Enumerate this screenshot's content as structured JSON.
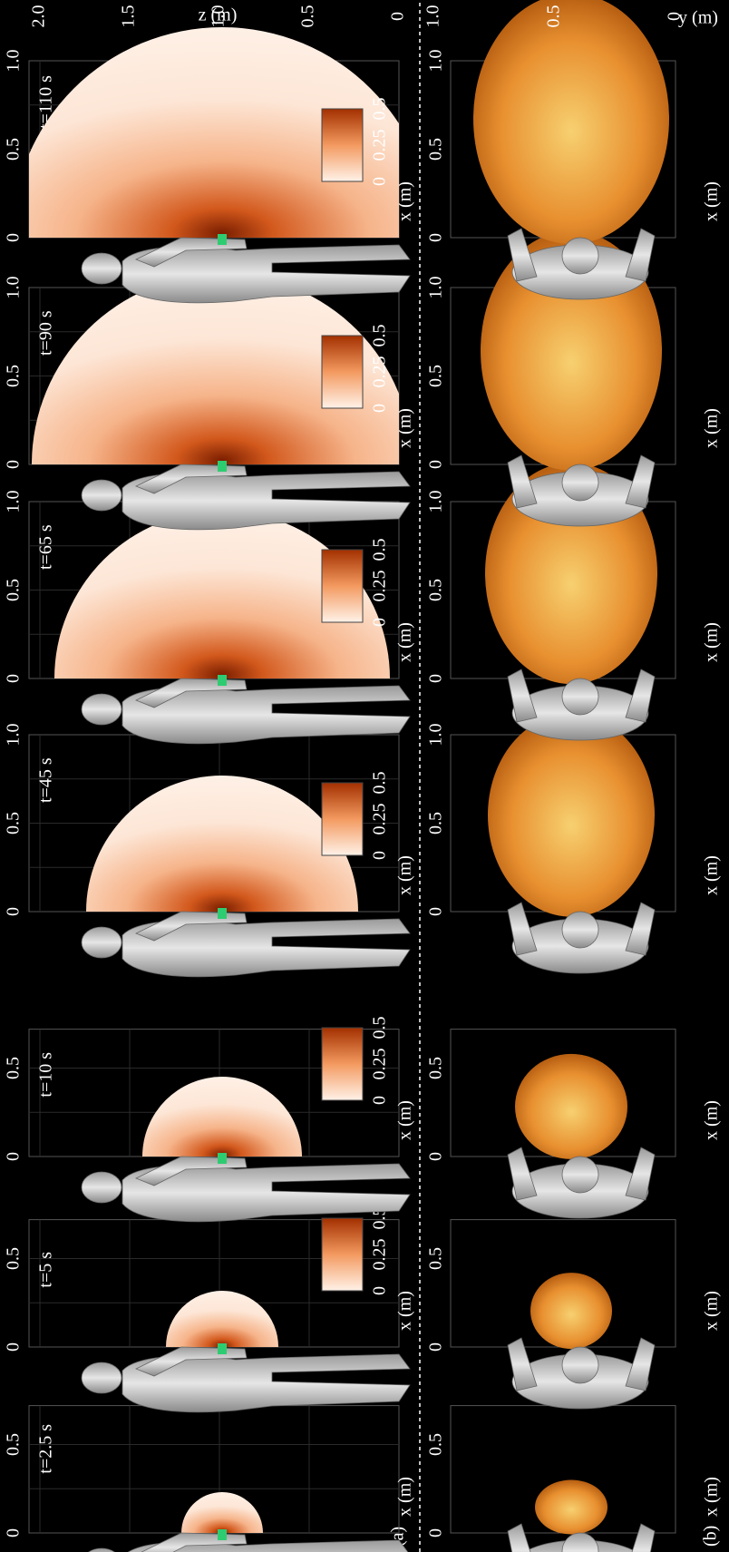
{
  "panel_a": {
    "label": "(a)",
    "y_label": "z (m)",
    "y_ticks": [
      "0",
      "0.5",
      "1.0",
      "1.5",
      "2.0"
    ],
    "colorbar_ticks": [
      "0",
      "0.25",
      "0.5"
    ]
  },
  "panel_b": {
    "label": "(b)",
    "y_label": "y (m)",
    "y_ticks": [
      "0",
      "0.5",
      "1.0"
    ]
  },
  "x_label": "x (m)",
  "columns": [
    {
      "time": "t=2.5 s",
      "x_ticks": [
        "0",
        "0.5"
      ]
    },
    {
      "time": "t=5 s",
      "x_ticks": [
        "0",
        "0.5"
      ]
    },
    {
      "time": "t=10 s",
      "x_ticks": [
        "0",
        "0.5"
      ]
    },
    {
      "time": "t=45 s",
      "x_ticks": [
        "0",
        "0.5",
        "1.0"
      ]
    },
    {
      "time": "t=65 s",
      "x_ticks": [
        "0",
        "0.5",
        "1.0"
      ]
    },
    {
      "time": "t=90 s",
      "x_ticks": [
        "0",
        "0.5",
        "1.0"
      ]
    },
    {
      "time": "t=110 s",
      "x_ticks": [
        "0",
        "0.5",
        "1.0"
      ]
    }
  ]
}
